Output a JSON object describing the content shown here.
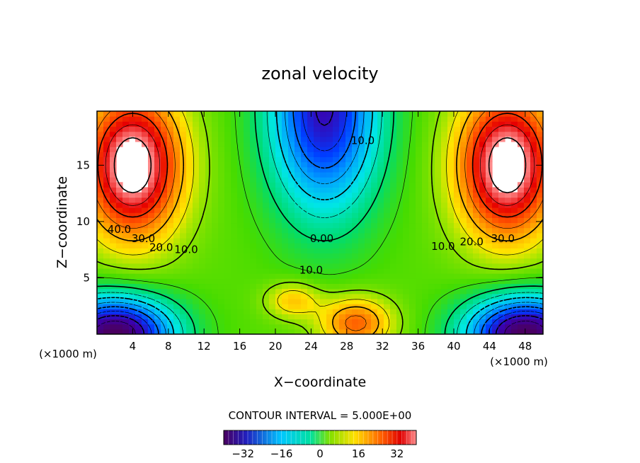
{
  "chart_data": {
    "type": "contour",
    "title": "zonal velocity",
    "xlabel": "X−coordinate",
    "ylabel": "Z−coordinate",
    "x_unit_left": "(×1000 m)",
    "x_unit_right": "(×1000 m)",
    "xlim": [
      0,
      50
    ],
    "ylim": [
      0,
      19.8
    ],
    "x_ticks": [
      4,
      8,
      12,
      16,
      20,
      24,
      28,
      32,
      36,
      40,
      44,
      48
    ],
    "y_ticks": [
      5,
      10,
      15
    ],
    "x_tick_labels": [
      "4",
      "8",
      "12",
      "16",
      "20",
      "24",
      "28",
      "32",
      "36",
      "40",
      "44",
      "48"
    ],
    "y_tick_labels": [
      "5",
      "10",
      "15"
    ],
    "contour_interval_text": "CONTOUR INTERVAL =  5.000E+00",
    "contour_interval": 5.0,
    "contour_labels": [
      {
        "text": "40.0",
        "x": 2.5,
        "y": 9.3
      },
      {
        "text": "30.0",
        "x": 5.2,
        "y": 8.5
      },
      {
        "text": "20.0",
        "x": 7.2,
        "y": 7.7
      },
      {
        "text": "10.0",
        "x": 10.0,
        "y": 7.5
      },
      {
        "text": "10.0",
        "x": 29.8,
        "y": 17.2
      },
      {
        "text": "0.00",
        "x": 25.2,
        "y": 8.5
      },
      {
        "text": "10.0",
        "x": 24.0,
        "y": 5.7
      },
      {
        "text": "10.0",
        "x": 38.8,
        "y": 7.8
      },
      {
        "text": "20.0",
        "x": 42.0,
        "y": 8.2
      },
      {
        "text": "30.0",
        "x": 45.5,
        "y": 8.5
      }
    ],
    "colorbar": {
      "min": -40,
      "max": 40,
      "tick_values": [
        -32,
        -16,
        0,
        16,
        32
      ],
      "tick_labels": [
        "−32",
        "−16",
        "0",
        "16",
        "32"
      ]
    }
  }
}
